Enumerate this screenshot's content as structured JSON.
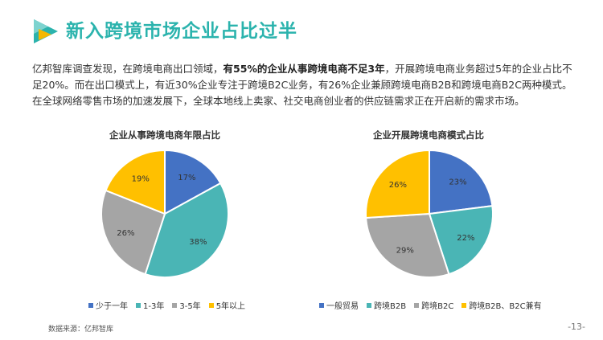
{
  "header": {
    "title": "新入跨境市场企业占比过半"
  },
  "paragraph": {
    "pre": "亿邦智库调查发现，在跨境电商出口领域，",
    "bold": "有55%的企业从事跨境电商不足3年",
    "post": "，开展跨境电商业务超过5年的企业占比不足20%。而在出口模式上，有近30%企业专注于跨境B2C业务，有26%企业兼顾跨境电商B2B和跨境电商B2C两种模式。在全球网络零售市场的加速发展下，全球本地线上卖家、社交电商创业者的供应链需求正在开启新的需求市场。"
  },
  "colors": {
    "blue": "#4472c4",
    "teal": "#4ab5b5",
    "gray": "#a5a5a5",
    "yellow": "#ffc000",
    "title": "#2bb3ad"
  },
  "chart_data": [
    {
      "type": "pie",
      "title": "企业从事跨境电商年限占比",
      "categories": [
        "少于一年",
        "1-3年",
        "3-5年",
        "5年以上"
      ],
      "values": [
        17,
        38,
        26,
        19
      ],
      "labels": [
        "17%",
        "38%",
        "26%",
        "19%"
      ],
      "colors": [
        "#4472c4",
        "#4ab5b5",
        "#a5a5a5",
        "#ffc000"
      ],
      "legend": "bottom"
    },
    {
      "type": "pie",
      "title": "企业开展跨境电商模式占比",
      "categories": [
        "一般贸易",
        "跨境B2B",
        "跨境B2C",
        "跨境B2B、B2C兼有"
      ],
      "values": [
        23,
        22,
        29,
        26
      ],
      "labels": [
        "23%",
        "22%",
        "29%",
        "26%"
      ],
      "colors": [
        "#4472c4",
        "#4ab5b5",
        "#a5a5a5",
        "#ffc000"
      ],
      "legend": "bottom"
    }
  ],
  "footer": {
    "source": "数据来源：亿邦智库",
    "page": "-13-"
  }
}
